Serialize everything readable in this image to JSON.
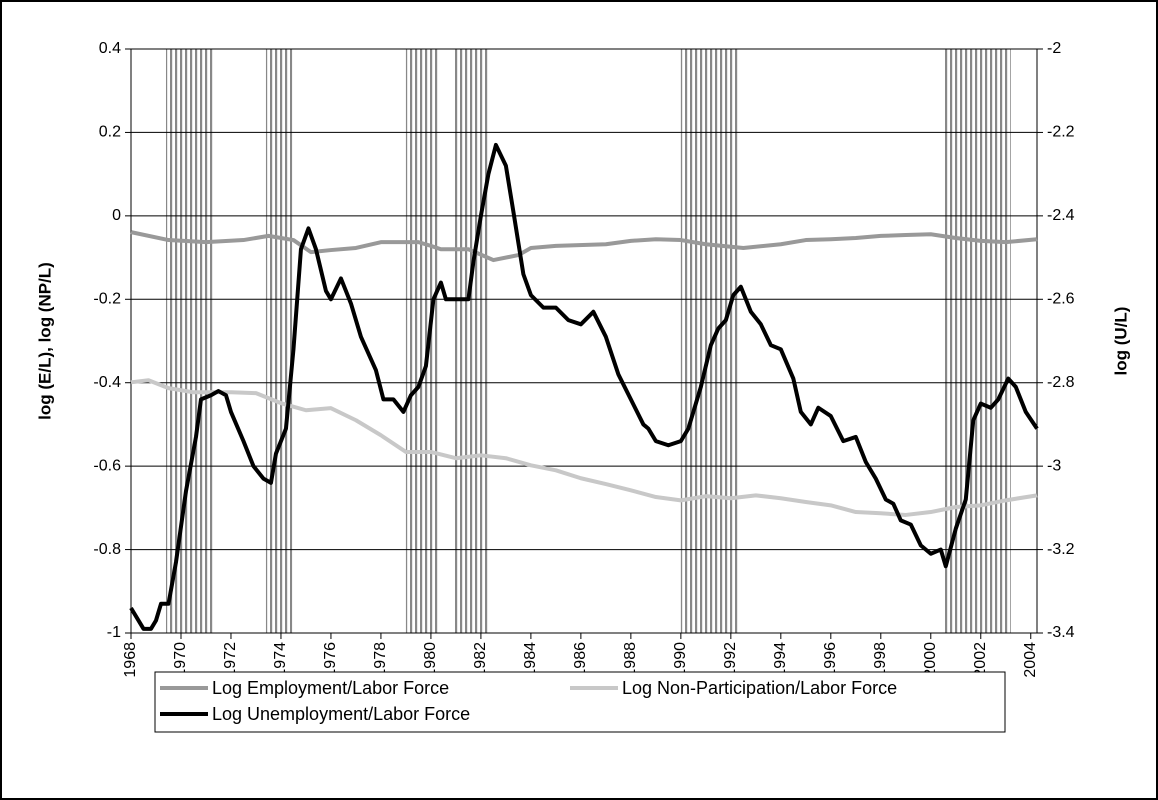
{
  "chart_data": {
    "type": "line",
    "y_label": "log (E/L), log (NP/L)",
    "y2_label": "log (U/L)",
    "xlim": [
      1968,
      2004.25
    ],
    "xticks": [
      1968,
      1970,
      1972,
      1974,
      1976,
      1978,
      1980,
      1982,
      1984,
      1986,
      1988,
      1990,
      1992,
      1994,
      1996,
      1998,
      2000,
      2002,
      2004
    ],
    "ylim": [
      -1,
      0.4
    ],
    "yticks": [
      0.4,
      0.2,
      0,
      -0.2,
      -0.4,
      -0.6,
      -0.8,
      -1
    ],
    "y2lim": [
      -3.4,
      -2
    ],
    "y2ticks": [
      -2,
      -2.2,
      -2.4,
      -2.6,
      -2.8,
      -3,
      -3.2,
      -3.4
    ],
    "grid": true,
    "shaded_periods": [
      [
        1969.4,
        1971.3
      ],
      [
        1973.4,
        1974.45
      ],
      [
        1979.0,
        1980.3
      ],
      [
        1980.9,
        1982.3
      ],
      [
        1990.0,
        1992.3
      ],
      [
        2000.5,
        2003.2
      ]
    ],
    "shade_color": "#888888",
    "series": [
      {
        "name": "Log Employment/Labor Force",
        "color": "#999999",
        "x": [
          1968,
          1969.5,
          1971,
          1972.5,
          1973.5,
          1974.5,
          1975.2,
          1976,
          1977,
          1978,
          1979.5,
          1980,
          1980.4,
          1981.5,
          1982.5,
          1983.5,
          1984,
          1985,
          1987,
          1988,
          1989,
          1990,
          1991,
          1992.5,
          1994,
          1995,
          1996,
          1997,
          1998,
          1999,
          2000,
          2001,
          2002,
          2003,
          2004.25
        ],
        "values": [
          -0.039,
          -0.058,
          -0.063,
          -0.058,
          -0.048,
          -0.058,
          -0.087,
          -0.082,
          -0.077,
          -0.063,
          -0.063,
          -0.072,
          -0.08,
          -0.08,
          -0.106,
          -0.094,
          -0.077,
          -0.072,
          -0.068,
          -0.06,
          -0.056,
          -0.058,
          -0.068,
          -0.077,
          -0.068,
          -0.058,
          -0.056,
          -0.053,
          -0.048,
          -0.046,
          -0.044,
          -0.053,
          -0.06,
          -0.063,
          -0.056
        ]
      },
      {
        "name": "Log Non-Participation/Labor Force",
        "color": "#c8c8c8",
        "x": [
          1968,
          1968.7,
          1969.5,
          1970.5,
          1972,
          1973,
          1974,
          1975,
          1976,
          1977,
          1978,
          1979,
          1980,
          1981,
          1982,
          1983,
          1984,
          1985,
          1986,
          1987,
          1988,
          1989,
          1990,
          1991,
          1992,
          1993,
          1994,
          1995,
          1996,
          1997,
          1998,
          1999,
          2000,
          2001,
          2002,
          2003,
          2004.25
        ],
        "values": [
          -0.399,
          -0.394,
          -0.413,
          -0.423,
          -0.423,
          -0.425,
          -0.449,
          -0.466,
          -0.461,
          -0.49,
          -0.526,
          -0.566,
          -0.566,
          -0.581,
          -0.574,
          -0.581,
          -0.598,
          -0.61,
          -0.629,
          -0.643,
          -0.658,
          -0.674,
          -0.682,
          -0.672,
          -0.677,
          -0.67,
          -0.677,
          -0.686,
          -0.694,
          -0.71,
          -0.713,
          -0.717,
          -0.71,
          -0.698,
          -0.694,
          -0.682,
          -0.67
        ]
      },
      {
        "name": "Log Unemployment/Labor Force",
        "color": "#000000",
        "axis": "y2",
        "x": [
          1968,
          1968.5,
          1968.8,
          1969,
          1969.2,
          1969.5,
          1969.8,
          1970.2,
          1970.6,
          1970.8,
          1971.2,
          1971.5,
          1971.8,
          1972,
          1972.5,
          1972.9,
          1973.3,
          1973.6,
          1973.8,
          1974.2,
          1974.5,
          1974.8,
          1975.1,
          1975.4,
          1975.8,
          1976,
          1976.4,
          1976.8,
          1977.2,
          1977.8,
          1978.1,
          1978.5,
          1978.9,
          1979.2,
          1979.5,
          1979.8,
          1980.1,
          1980.4,
          1980.6,
          1981,
          1981.5,
          1981.7,
          1982,
          1982.3,
          1982.6,
          1983,
          1983.3,
          1983.7,
          1984,
          1984.5,
          1985,
          1985.5,
          1986,
          1986.5,
          1987,
          1987.5,
          1988,
          1988.5,
          1988.7,
          1989,
          1989.5,
          1990,
          1990.3,
          1990.8,
          1991.2,
          1991.5,
          1991.8,
          1992.1,
          1992.4,
          1992.8,
          1993.2,
          1993.6,
          1994,
          1994.5,
          1994.8,
          1995.2,
          1995.5,
          1996,
          1996.5,
          1997,
          1997.4,
          1997.8,
          1998.2,
          1998.5,
          1998.8,
          1999.2,
          1999.6,
          2000,
          2000.4,
          2000.6,
          2001,
          2001.4,
          2001.7,
          2002,
          2002.4,
          2002.7,
          2003.1,
          2003.4,
          2003.8,
          2004.25
        ],
        "values": [
          -3.34,
          -3.39,
          -3.39,
          -3.37,
          -3.33,
          -3.33,
          -3.23,
          -3.06,
          -2.93,
          -2.84,
          -2.83,
          -2.82,
          -2.83,
          -2.87,
          -2.94,
          -3.0,
          -3.03,
          -3.04,
          -2.97,
          -2.91,
          -2.72,
          -2.48,
          -2.43,
          -2.48,
          -2.58,
          -2.6,
          -2.55,
          -2.61,
          -2.69,
          -2.77,
          -2.84,
          -2.84,
          -2.87,
          -2.83,
          -2.81,
          -2.76,
          -2.6,
          -2.56,
          -2.6,
          -2.6,
          -2.6,
          -2.51,
          -2.4,
          -2.3,
          -2.23,
          -2.28,
          -2.39,
          -2.54,
          -2.59,
          -2.62,
          -2.62,
          -2.65,
          -2.66,
          -2.63,
          -2.69,
          -2.78,
          -2.84,
          -2.9,
          -2.91,
          -2.94,
          -2.95,
          -2.94,
          -2.91,
          -2.81,
          -2.71,
          -2.67,
          -2.65,
          -2.59,
          -2.57,
          -2.63,
          -2.66,
          -2.71,
          -2.72,
          -2.79,
          -2.87,
          -2.9,
          -2.86,
          -2.88,
          -2.94,
          -2.93,
          -2.99,
          -3.03,
          -3.08,
          -3.09,
          -3.13,
          -3.14,
          -3.19,
          -3.21,
          -3.2,
          -3.24,
          -3.15,
          -3.08,
          -2.89,
          -2.85,
          -2.86,
          -2.84,
          -2.79,
          -2.81,
          -2.87,
          -2.91
        ]
      }
    ]
  }
}
